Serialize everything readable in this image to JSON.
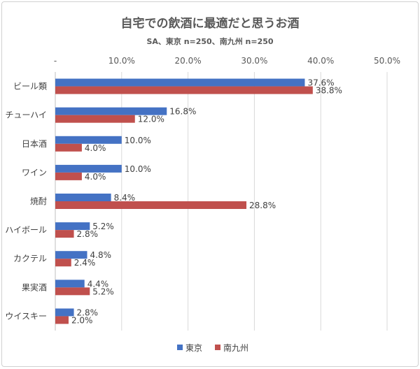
{
  "chart_data": {
    "type": "bar",
    "orientation": "horizontal",
    "title": "自宅での飲酒に最適だと思うお酒",
    "subtitle": "SA、東京 n=250、南九州 n=250",
    "categories": [
      "ビール類",
      "チューハイ",
      "日本酒",
      "ワイン",
      "焼酎",
      "ハイボール",
      "カクテル",
      "果実酒",
      "ウイスキー"
    ],
    "series": [
      {
        "name": "東京",
        "color": "#4472c4",
        "values": [
          37.6,
          16.8,
          10.0,
          10.0,
          8.4,
          5.2,
          4.8,
          4.4,
          2.8
        ]
      },
      {
        "name": "南九州",
        "color": "#c0504d",
        "values": [
          38.8,
          12.0,
          4.0,
          4.0,
          28.8,
          2.8,
          2.4,
          5.2,
          2.0
        ]
      }
    ],
    "xlim": [
      0,
      50
    ],
    "xticks": [
      0,
      10,
      20,
      30,
      40,
      50
    ],
    "xtick_labels": [
      "-",
      "10.0%",
      "20.0%",
      "30.0%",
      "40.0%",
      "50.0%"
    ],
    "value_format": "%",
    "grid": true,
    "legend_position": "bottom"
  }
}
